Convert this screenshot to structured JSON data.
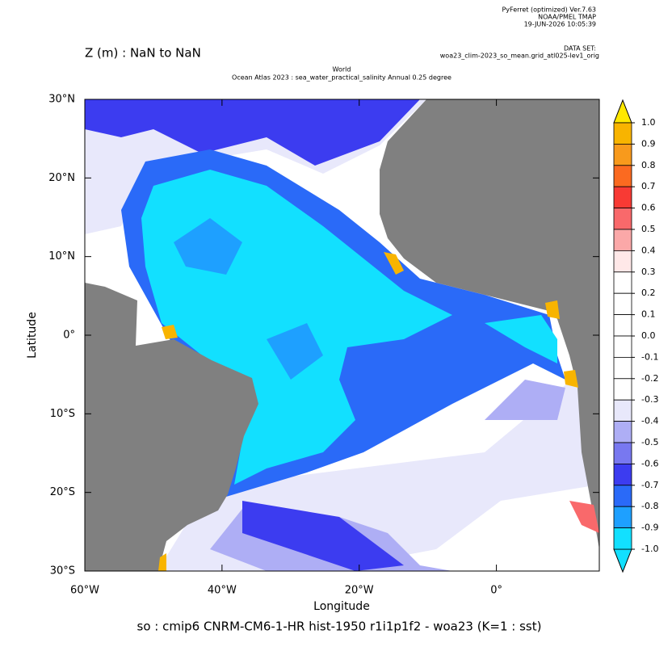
{
  "header": {
    "software": "PyFerret (optimized) Ver.7.63",
    "org": "NOAA/PMEL TMAP",
    "date": "19-JUN-2026 10:05:39",
    "dataset_label": "DATA SET:",
    "dataset": "woa23_clim-2023_so_mean.grid_atl025-lev1_orig"
  },
  "z_label": "Z (m) : NaN to NaN",
  "title": [
    "World",
    "Ocean Atlas 2023 : sea_water_practical_salinity Annual  0.25 degree"
  ],
  "map": {
    "xlabel": "Longitude",
    "ylabel": "Latitude",
    "xlim": [
      -60,
      15
    ],
    "ylim": [
      -30,
      30
    ],
    "xticks": [
      {
        "value": -60,
        "label": "60°W"
      },
      {
        "value": -40,
        "label": "40°W"
      },
      {
        "value": -20,
        "label": "20°W"
      },
      {
        "value": 0,
        "label": "0°"
      }
    ],
    "yticks": [
      {
        "value": 30,
        "label": "30°N"
      },
      {
        "value": 20,
        "label": "20°N"
      },
      {
        "value": 10,
        "label": "10°N"
      },
      {
        "value": 0,
        "label": "0°"
      },
      {
        "value": -10,
        "label": "10°S"
      },
      {
        "value": -20,
        "label": "20°S"
      },
      {
        "value": -30,
        "label": "30°S"
      }
    ]
  },
  "colorbar": {
    "levels": [
      {
        "value": 1.0,
        "label": "1.0"
      },
      {
        "value": 0.9,
        "label": "0.9"
      },
      {
        "value": 0.8,
        "label": "0.8"
      },
      {
        "value": 0.7,
        "label": "0.7"
      },
      {
        "value": 0.6,
        "label": "0.6"
      },
      {
        "value": 0.5,
        "label": "0.5"
      },
      {
        "value": 0.4,
        "label": "0.4"
      },
      {
        "value": 0.3,
        "label": "0.3"
      },
      {
        "value": 0.2,
        "label": "0.2"
      },
      {
        "value": 0.1,
        "label": "0.1"
      },
      {
        "value": 0,
        "label": "0.0"
      },
      {
        "value": -0.1,
        "label": "-0.1"
      },
      {
        "value": -0.2,
        "label": "-0.2"
      },
      {
        "value": -0.3,
        "label": "-0.3"
      },
      {
        "value": -0.4,
        "label": "-0.4"
      },
      {
        "value": -0.5,
        "label": "-0.5"
      },
      {
        "value": -0.6,
        "label": "-0.6"
      },
      {
        "value": -0.7,
        "label": "-0.7"
      },
      {
        "value": -0.8,
        "label": "-0.8"
      },
      {
        "value": -0.9,
        "label": "-0.9"
      },
      {
        "value": -1.0,
        "label": "-1.0"
      }
    ],
    "colors": [
      "#f8b400",
      "#f89a1c",
      "#fb6a20",
      "#f83a34",
      "#f9696b",
      "#fba8a8",
      "#ffe8e8",
      "#ffffff",
      "#ffffff",
      "#ffffff",
      "#ffffff",
      "#ffffff",
      "#ffffff",
      "#e8e8fb",
      "#aeaef5",
      "#7878f0",
      "#3c3cf0",
      "#2a6af8",
      "#1ea0ff",
      "#12e0ff"
    ],
    "over_color": "#ffe800",
    "under_color": "#12e0ff"
  },
  "footer": "so : cmip6 CNRM-CM6-1-HR hist-1950 r1i1p1f2 - woa23  (K=1 : sst)"
}
